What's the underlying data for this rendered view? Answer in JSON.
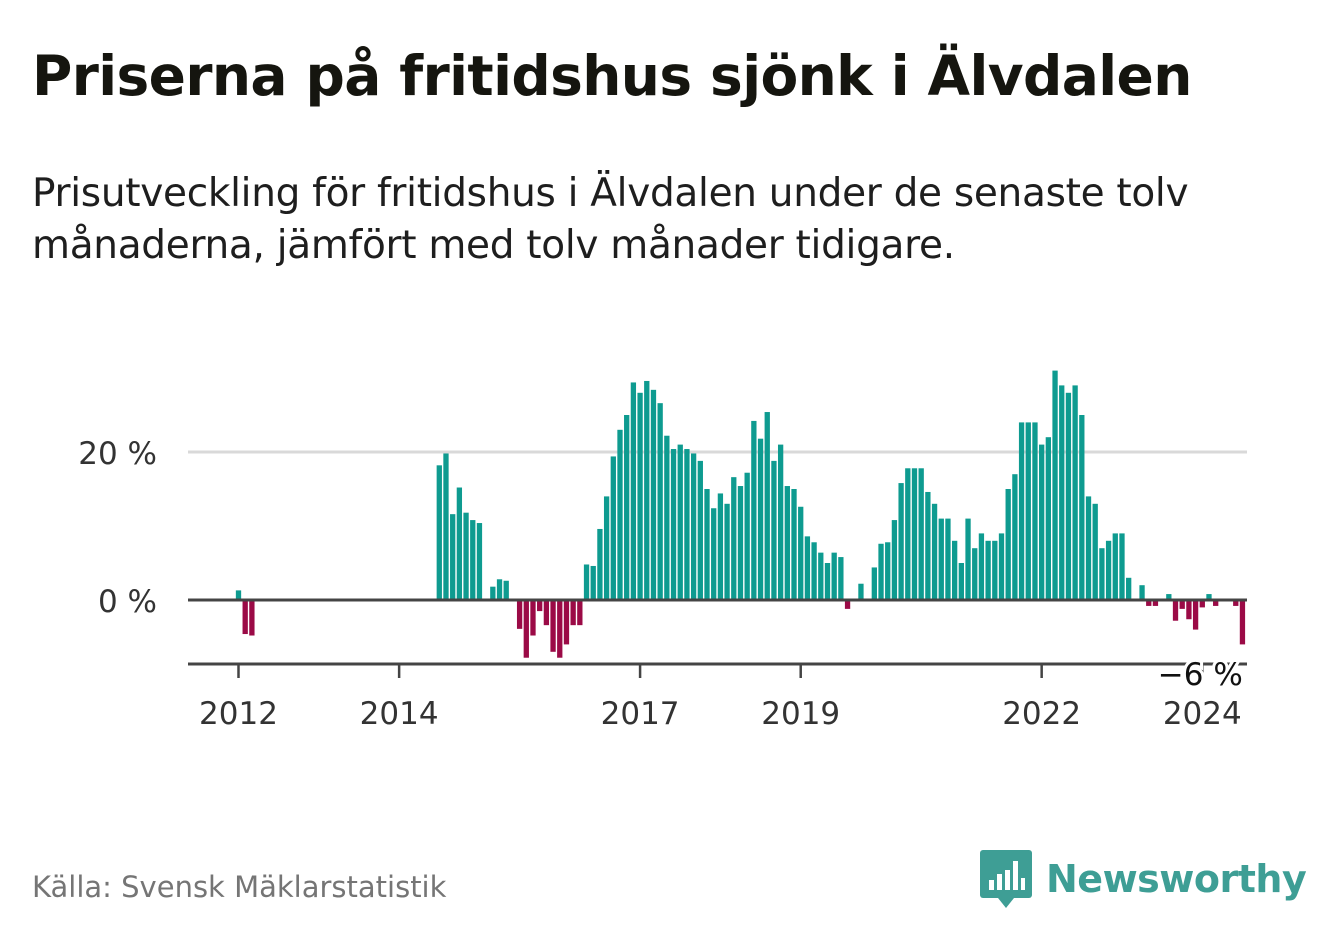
{
  "title": "Priserna på fritidshus sjönk i Älvdalen",
  "subtitle": "Prisutveckling för fritidshus i Älvdalen under de senaste tolv månaderna, jämfört med tolv månader tidigare.",
  "source": "Källa: Svensk Mäklarstatistik",
  "brand": {
    "name": "Newsworthy"
  },
  "colors": {
    "positive": "#0e9b90",
    "negative": "#9b0a46",
    "axis": "#444444",
    "grid": "#d9d9d9",
    "brand": "#3e9e95"
  },
  "chart_data": {
    "type": "bar",
    "title": "Priserna på fritidshus sjönk i Älvdalen",
    "xlabel": "",
    "ylabel": "",
    "unit": "%",
    "ylim": [
      -8.6,
      31
    ],
    "yticks": [
      {
        "value": 20,
        "label": "20 %"
      },
      {
        "value": 0,
        "label": "0 %"
      }
    ],
    "xticks": [
      {
        "index": 0,
        "label": "2012"
      },
      {
        "index": 24,
        "label": "2014"
      },
      {
        "index": 60,
        "label": "2017"
      },
      {
        "index": 84,
        "label": "2019"
      },
      {
        "index": 120,
        "label": "2022"
      },
      {
        "index": 144,
        "label": "2024"
      }
    ],
    "annotation": {
      "index": 144,
      "label": "−6 %"
    },
    "values": [
      1.3,
      -4.6,
      -4.8,
      null,
      null,
      null,
      null,
      null,
      null,
      null,
      null,
      null,
      null,
      null,
      null,
      null,
      null,
      null,
      null,
      null,
      null,
      null,
      null,
      null,
      null,
      null,
      null,
      null,
      null,
      null,
      18.2,
      19.8,
      11.6,
      15.2,
      11.8,
      10.8,
      10.4,
      null,
      1.8,
      2.8,
      2.6,
      null,
      -3.9,
      -7.8,
      -4.8,
      -1.5,
      -3.4,
      -7.0,
      -7.8,
      -6.0,
      -3.4,
      -3.4,
      4.8,
      4.6,
      9.6,
      14.0,
      19.4,
      23.0,
      25.0,
      29.4,
      28.0,
      29.6,
      28.4,
      26.6,
      22.2,
      20.4,
      21.0,
      20.4,
      19.8,
      18.8,
      15.0,
      12.4,
      14.4,
      13.0,
      16.6,
      15.4,
      17.2,
      24.2,
      21.8,
      25.4,
      18.8,
      21.0,
      15.4,
      15.0,
      12.6,
      8.6,
      7.8,
      6.4,
      5.0,
      6.4,
      5.8,
      -1.2,
      null,
      2.2,
      null,
      4.4,
      7.6,
      7.8,
      10.8,
      15.8,
      17.8,
      17.8,
      17.8,
      14.6,
      13.0,
      11.0,
      11.0,
      8.0,
      5.0,
      11.0,
      7.0,
      9.0,
      8.0,
      8.0,
      9.0,
      15.0,
      17.0,
      24.0,
      24.0,
      24.0,
      21.0,
      22.0,
      31.0,
      29.0,
      28.0,
      29.0,
      25.0,
      14.0,
      13.0,
      7.0,
      8.0,
      9.0,
      9.0,
      3.0,
      null,
      2.0,
      -0.8,
      -0.8,
      null,
      0.8,
      -2.8,
      -1.2,
      -2.6,
      -4.0,
      -1.0,
      0.8,
      -0.8,
      null,
      null,
      -0.8,
      -6.0,
      null,
      null,
      null,
      null,
      null,
      null
    ]
  }
}
